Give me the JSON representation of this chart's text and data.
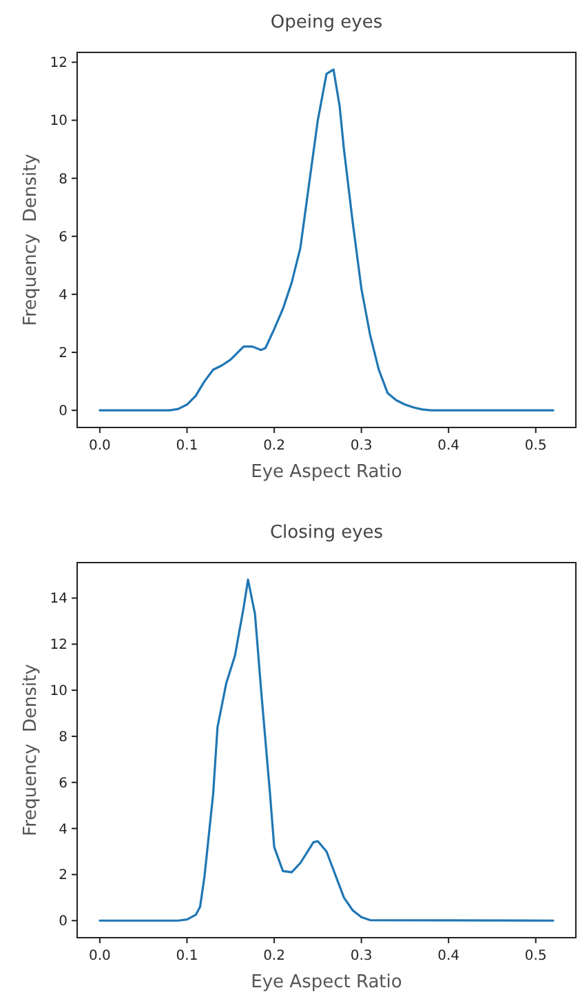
{
  "chart_data": [
    {
      "type": "line",
      "title": "Opeing eyes",
      "xlabel": "Eye Aspect Ratio",
      "ylabel": "Frequency  Density",
      "xlim": [
        -0.026,
        0.546
      ],
      "ylim": [
        -0.59,
        12.34
      ],
      "xticks": [
        {
          "value": 0,
          "label": "0.0"
        },
        0.1,
        0.2,
        0.3,
        0.4,
        0.5
      ],
      "yticks": [
        0,
        2,
        4,
        6,
        8,
        10,
        12
      ],
      "grid": false,
      "series": [
        {
          "color": "#1f77b4",
          "x": [
            0,
            0.08,
            0.09,
            0.1,
            0.11,
            0.12,
            0.13,
            0.14,
            0.15,
            0.16,
            0.165,
            0.175,
            0.185,
            0.19,
            0.2,
            0.21,
            0.22,
            0.23,
            0.24,
            0.25,
            0.26,
            0.268,
            0.275,
            0.28,
            0.29,
            0.3,
            0.31,
            0.32,
            0.33,
            0.34,
            0.35,
            0.36,
            0.37,
            0.38,
            0.52
          ],
          "values": [
            0,
            0,
            0.05,
            0.2,
            0.5,
            1.0,
            1.4,
            1.55,
            1.75,
            2.05,
            2.2,
            2.2,
            2.08,
            2.15,
            2.8,
            3.5,
            4.4,
            5.6,
            7.8,
            10.0,
            11.6,
            11.75,
            10.5,
            9,
            6.5,
            4.2,
            2.6,
            1.4,
            0.6,
            0.35,
            0.2,
            0.1,
            0.03,
            0,
            0
          ]
        }
      ]
    },
    {
      "type": "line",
      "title": "Closing eyes",
      "xlabel": "Eye Aspect Ratio",
      "ylabel": "Frequency  Density",
      "xlim": [
        -0.026,
        0.546
      ],
      "ylim": [
        -0.74,
        15.54
      ],
      "xticks": [
        {
          "value": 0,
          "label": "0.0"
        },
        0.1,
        0.2,
        0.3,
        0.4,
        0.5
      ],
      "yticks": [
        0,
        2,
        4,
        6,
        8,
        10,
        12,
        14
      ],
      "grid": false,
      "series": [
        {
          "color": "#1f77b4",
          "x": [
            0,
            0.09,
            0.1,
            0.11,
            0.115,
            0.12,
            0.13,
            0.135,
            0.145,
            0.155,
            0.165,
            0.17,
            0.178,
            0.185,
            0.195,
            0.2,
            0.21,
            0.22,
            0.23,
            0.24,
            0.245,
            0.25,
            0.26,
            0.27,
            0.28,
            0.29,
            0.3,
            0.31,
            0.52
          ],
          "values": [
            0,
            0,
            0.05,
            0.25,
            0.6,
            1.9,
            5.5,
            8.4,
            10.3,
            11.5,
            13.6,
            14.8,
            13.3,
            10,
            5.6,
            3.2,
            2.15,
            2.1,
            2.5,
            3.1,
            3.4,
            3.45,
            3.0,
            2.0,
            1.0,
            0.45,
            0.15,
            0.02,
            0
          ]
        }
      ]
    }
  ]
}
